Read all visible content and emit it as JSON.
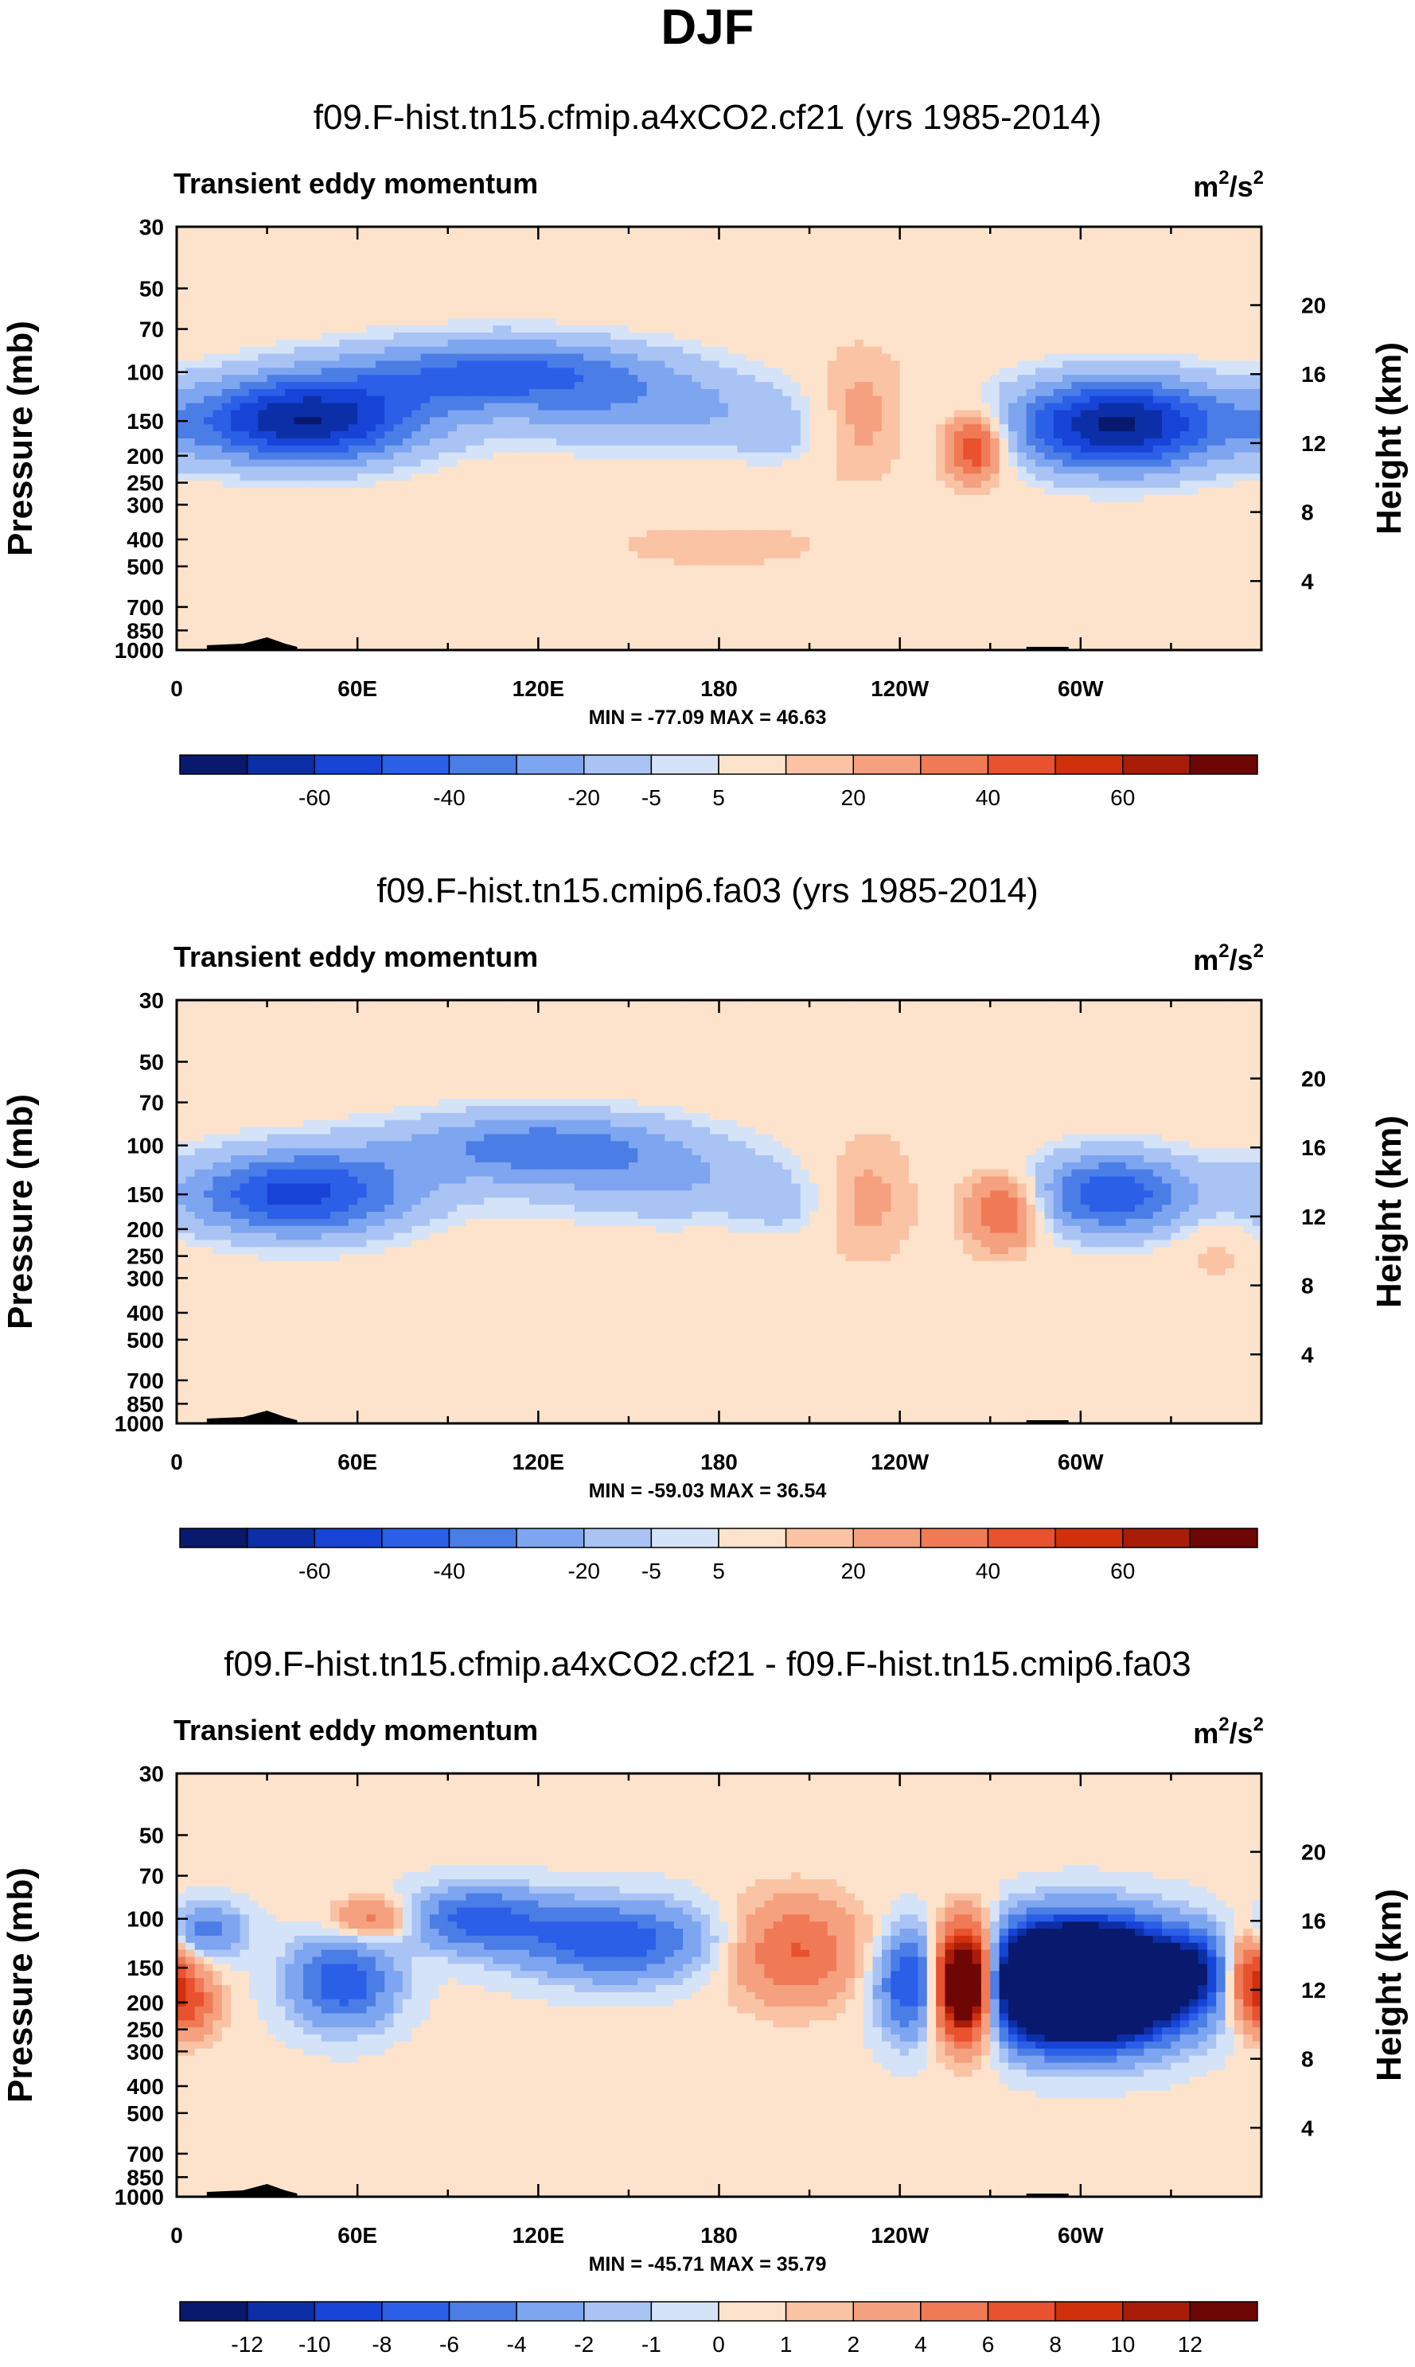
{
  "page_title": "DJF",
  "chart_data": [
    {
      "type": "heatmap",
      "title": "f09.F-hist.tn15.cfmip.a4xCO2.cf21 (yrs 1985-2014)",
      "variable": "Transient eddy momentum",
      "units_base": "m",
      "units_sup1": "2",
      "units_mid": "/s",
      "units_sup2": "2",
      "ylabel": "Pressure (mb)",
      "ylabel_right": "Height (km)",
      "x_ticks": [
        "0",
        "60E",
        "120E",
        "180",
        "120W",
        "60W"
      ],
      "x_tick_lon": [
        0,
        60,
        120,
        180,
        240,
        300
      ],
      "xlim": [
        0,
        360
      ],
      "y_ticks": [
        "30",
        "50",
        "70",
        "100",
        "150",
        "200",
        "250",
        "300",
        "400",
        "500",
        "700",
        "850",
        "1000"
      ],
      "y_tick_p": [
        30,
        50,
        70,
        100,
        150,
        200,
        250,
        300,
        400,
        500,
        700,
        850,
        1000
      ],
      "ylim": [
        1000,
        30
      ],
      "height_ticks": [
        "20",
        "16",
        "12",
        "8",
        "4"
      ],
      "height_km": [
        20,
        16,
        12,
        8,
        4
      ],
      "min_max": "MIN = -77.09  MAX = 46.63",
      "colorbar_labels": [
        "-60",
        "-40",
        "-20",
        "-5",
        "5",
        "20",
        "40",
        "60"
      ],
      "features": [
        {
          "lon": 42,
          "p": 150,
          "value": -70,
          "wlon": 28,
          "wlogp": 0.26
        },
        {
          "lon": 108,
          "p": 100,
          "value": -42,
          "wlon": 38,
          "wlogp": 0.22
        },
        {
          "lon": 160,
          "p": 140,
          "value": -22,
          "wlon": 40,
          "wlogp": 0.25
        },
        {
          "lon": 200,
          "p": 170,
          "value": -9,
          "wlon": 10,
          "wlogp": 0.18
        },
        {
          "lon": 226,
          "p": 140,
          "value": 16,
          "wlon": 12,
          "wlogp": 0.35
        },
        {
          "lon": 265,
          "p": 185,
          "value": 46,
          "wlon": 7,
          "wlogp": 0.2
        },
        {
          "lon": 312,
          "p": 155,
          "value": -74,
          "wlon": 25,
          "wlogp": 0.28
        },
        {
          "lon": 180,
          "p": 420,
          "value": 6,
          "wlon": 30,
          "wlogp": 0.15
        }
      ]
    },
    {
      "type": "heatmap",
      "title": "f09.F-hist.tn15.cmip6.fa03 (yrs 1985-2014)",
      "variable": "Transient eddy momentum",
      "units_base": "m",
      "units_sup1": "2",
      "units_mid": "/s",
      "units_sup2": "2",
      "ylabel": "Pressure (mb)",
      "ylabel_right": "Height (km)",
      "x_ticks": [
        "0",
        "60E",
        "120E",
        "180",
        "120W",
        "60W"
      ],
      "x_tick_lon": [
        0,
        60,
        120,
        180,
        240,
        300
      ],
      "xlim": [
        0,
        360
      ],
      "y_ticks": [
        "30",
        "50",
        "70",
        "100",
        "150",
        "200",
        "250",
        "300",
        "400",
        "500",
        "700",
        "850",
        "1000"
      ],
      "y_tick_p": [
        30,
        50,
        70,
        100,
        150,
        200,
        250,
        300,
        400,
        500,
        700,
        850,
        1000
      ],
      "ylim": [
        1000,
        30
      ],
      "height_ticks": [
        "20",
        "16",
        "12",
        "8",
        "4"
      ],
      "height_km": [
        20,
        16,
        12,
        8,
        4
      ],
      "min_max": "MIN = -59.03  MAX = 36.54",
      "colorbar_labels": [
        "-60",
        "-40",
        "-20",
        "-5",
        "5",
        "20",
        "40",
        "60"
      ],
      "features": [
        {
          "lon": 40,
          "p": 150,
          "value": -55,
          "wlon": 28,
          "wlogp": 0.26
        },
        {
          "lon": 120,
          "p": 100,
          "value": -35,
          "wlon": 36,
          "wlogp": 0.22
        },
        {
          "lon": 165,
          "p": 140,
          "value": -18,
          "wlon": 36,
          "wlogp": 0.25
        },
        {
          "lon": 203,
          "p": 170,
          "value": -9,
          "wlon": 10,
          "wlogp": 0.18
        },
        {
          "lon": 228,
          "p": 150,
          "value": 14,
          "wlon": 12,
          "wlogp": 0.35
        },
        {
          "lon": 275,
          "p": 170,
          "value": 36,
          "wlon": 9,
          "wlogp": 0.22
        },
        {
          "lon": 310,
          "p": 150,
          "value": -50,
          "wlon": 20,
          "wlogp": 0.25
        },
        {
          "lon": 345,
          "p": 230,
          "value": 8,
          "wlon": 8,
          "wlogp": 0.2
        }
      ]
    },
    {
      "type": "heatmap",
      "title": "f09.F-hist.tn15.cfmip.a4xCO2.cf21 - f09.F-hist.tn15.cmip6.fa03",
      "variable": "Transient eddy momentum",
      "units_base": "m",
      "units_sup1": "2",
      "units_mid": "/s",
      "units_sup2": "2",
      "ylabel": "Pressure (mb)",
      "ylabel_right": "Height (km)",
      "x_ticks": [
        "0",
        "60E",
        "120E",
        "180",
        "120W",
        "60W"
      ],
      "x_tick_lon": [
        0,
        60,
        120,
        180,
        240,
        300
      ],
      "xlim": [
        0,
        360
      ],
      "y_ticks": [
        "30",
        "50",
        "70",
        "100",
        "150",
        "200",
        "250",
        "300",
        "400",
        "500",
        "700",
        "850",
        "1000"
      ],
      "y_tick_p": [
        30,
        50,
        70,
        100,
        150,
        200,
        250,
        300,
        400,
        500,
        700,
        850,
        1000
      ],
      "ylim": [
        1000,
        30
      ],
      "height_ticks": [
        "20",
        "16",
        "12",
        "8",
        "4"
      ],
      "height_km": [
        20,
        16,
        12,
        8,
        4
      ],
      "min_max": "MIN = -45.71  MAX = 35.79",
      "colorbar_labels": [
        "-12",
        "-10",
        "-8",
        "-6",
        "-4",
        "-2",
        "-1",
        "0",
        "1",
        "2",
        "4",
        "6",
        "8",
        "10",
        "12"
      ],
      "features": [
        {
          "lon": 4,
          "p": 200,
          "value": 6,
          "wlon": 7,
          "wlogp": 0.2
        },
        {
          "lon": 10,
          "p": 110,
          "value": -5,
          "wlon": 9,
          "wlogp": 0.15
        },
        {
          "lon": 55,
          "p": 170,
          "value": -8,
          "wlon": 12,
          "wlogp": 0.25
        },
        {
          "lon": 65,
          "p": 100,
          "value": 5,
          "wlon": 9,
          "wlogp": 0.12
        },
        {
          "lon": 100,
          "p": 100,
          "value": -7,
          "wlon": 16,
          "wlogp": 0.18
        },
        {
          "lon": 145,
          "p": 120,
          "value": -8,
          "wlon": 22,
          "wlogp": 0.22
        },
        {
          "lon": 205,
          "p": 130,
          "value": 6,
          "wlon": 15,
          "wlogp": 0.3
        },
        {
          "lon": 245,
          "p": 170,
          "value": -9,
          "wlon": 8,
          "wlogp": 0.3
        },
        {
          "lon": 262,
          "p": 170,
          "value": 30,
          "wlon": 8,
          "wlogp": 0.3
        },
        {
          "lon": 300,
          "p": 170,
          "value": -45,
          "wlon": 22,
          "wlogp": 0.3
        },
        {
          "lon": 338,
          "p": 150,
          "value": -6,
          "wlon": 7,
          "wlogp": 0.2
        },
        {
          "lon": 356,
          "p": 160,
          "value": 8,
          "wlon": 6,
          "wlogp": 0.25
        }
      ]
    }
  ],
  "colors": {
    "scale": [
      "#08196e",
      "#0c2fa8",
      "#1744d6",
      "#2b5fe8",
      "#4a7de6",
      "#7ea5ef",
      "#a9c4f4",
      "#d5e3f8",
      "#fde3cc",
      "#f9c3a4",
      "#f5a07f",
      "#ef7a55",
      "#e8522e",
      "#d0310c",
      "#a81c08",
      "#6e0605"
    ]
  }
}
